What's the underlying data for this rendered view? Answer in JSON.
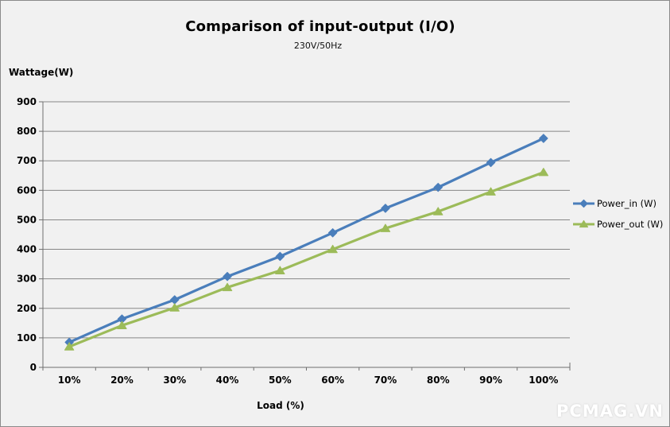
{
  "page": {
    "watermark": "PCMAG.VN"
  },
  "chart_data": {
    "type": "line",
    "title": "Comparison of input-output (I/O)",
    "subtitle": "230V/50Hz",
    "xlabel": "Load (%)",
    "ylabel": "Wattage(W)",
    "categories": [
      "10%",
      "20%",
      "30%",
      "40%",
      "50%",
      "60%",
      "70%",
      "80%",
      "90%",
      "100%"
    ],
    "series": [
      {
        "name": "Power_in (W)",
        "marker": "diamond",
        "color": "#4a7ebb",
        "values": [
          85,
          164,
          229,
          308,
          376,
          456,
          539,
          610,
          694,
          776
        ]
      },
      {
        "name": "Power_out (W)",
        "marker": "triangle",
        "color": "#9cbb59",
        "values": [
          70,
          142,
          202,
          271,
          328,
          400,
          471,
          528,
          595,
          661
        ]
      }
    ],
    "ylim": [
      0,
      900
    ],
    "ytick_step": 100,
    "grid": true,
    "legend_position": "right",
    "gridline_color": "#878787",
    "axis_color": "#6e6e6e",
    "background_color": "#f1f1f1",
    "border_color": "#8a8a8a",
    "text_color": "#000000",
    "watermark_color": "#ffffff"
  }
}
